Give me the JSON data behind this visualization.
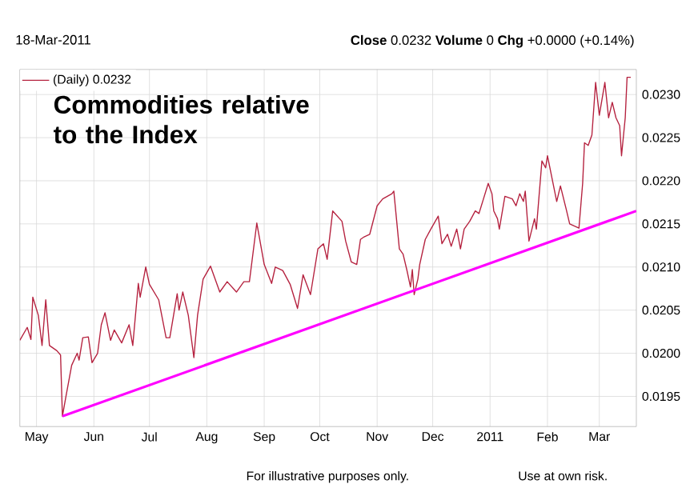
{
  "chart_data": {
    "type": "line",
    "annotations": [
      "18-Mar-2011",
      "**Close** 0.0232  **Volume** 0  **Chg** +0.0000 (+0.14%)",
      "Commodities relative to the Index",
      "For illustrative purposes only.",
      "Use at own risk."
    ],
    "x": [
      "2010-04-22",
      "2010-04-26",
      "2010-04-28",
      "2010-04-29",
      "2010-05-02",
      "2010-05-04",
      "2010-05-06",
      "2010-05-08",
      "2010-05-12",
      "2010-05-14",
      "2010-05-15",
      "2010-05-17",
      "2010-05-20",
      "2010-05-23",
      "2010-05-24",
      "2010-05-26",
      "2010-05-29",
      "2010-05-31",
      "2010-06-03",
      "2010-06-05",
      "2010-06-07",
      "2010-06-10",
      "2010-06-12",
      "2010-06-16",
      "2010-06-20",
      "2010-06-22",
      "2010-06-25",
      "2010-06-26",
      "2010-06-29",
      "2010-07-01",
      "2010-07-06",
      "2010-07-10",
      "2010-07-12",
      "2010-07-16",
      "2010-07-17",
      "2010-07-19",
      "2010-07-22",
      "2010-07-25",
      "2010-07-27",
      "2010-07-30",
      "2010-08-03",
      "2010-08-08",
      "2010-08-12",
      "2010-08-17",
      "2010-08-21",
      "2010-08-24",
      "2010-08-28",
      "2010-09-01",
      "2010-09-05",
      "2010-09-07",
      "2010-09-11",
      "2010-09-15",
      "2010-09-19",
      "2010-09-22",
      "2010-09-26",
      "2010-09-30",
      "2010-10-03",
      "2010-10-05",
      "2010-10-08",
      "2010-10-13",
      "2010-10-15",
      "2010-10-18",
      "2010-10-21",
      "2010-10-23",
      "2010-10-25",
      "2010-10-28",
      "2010-11-01",
      "2010-11-04",
      "2010-11-09",
      "2010-11-10",
      "2010-11-13",
      "2010-11-15",
      "2010-11-17",
      "2010-11-19",
      "2010-11-20",
      "2010-11-21",
      "2010-11-23",
      "2010-11-24",
      "2010-11-27",
      "2010-11-30",
      "2010-12-04",
      "2010-12-06",
      "2010-12-09",
      "2010-12-11",
      "2010-12-14",
      "2010-12-16",
      "2010-12-18",
      "2010-12-21",
      "2010-12-24",
      "2010-12-26",
      "2010-12-28",
      "2010-12-31",
      "2011-01-02",
      "2011-01-03",
      "2011-01-05",
      "2011-01-06",
      "2011-01-09",
      "2011-01-13",
      "2011-01-15",
      "2011-01-17",
      "2011-01-19",
      "2011-01-20",
      "2011-01-22",
      "2011-01-25",
      "2011-01-26",
      "2011-01-29",
      "2011-01-31",
      "2011-02-01",
      "2011-02-04",
      "2011-02-06",
      "2011-02-08",
      "2011-02-11",
      "2011-02-13",
      "2011-02-18",
      "2011-02-20",
      "2011-02-21",
      "2011-02-23",
      "2011-02-25",
      "2011-02-27",
      "2011-03-01",
      "2011-03-04",
      "2011-03-06",
      "2011-03-08",
      "2011-03-10",
      "2011-03-12",
      "2011-03-13",
      "2011-03-15",
      "2011-03-16",
      "2011-03-18"
    ],
    "series": [
      {
        "name": "(Daily) 0.0232",
        "color": "#b5223f",
        "values": [
          0.02015,
          0.0203,
          0.02016,
          0.02065,
          0.02044,
          0.02009,
          0.02062,
          0.02009,
          0.02003,
          0.01998,
          0.01927,
          0.01951,
          0.01986,
          0.02,
          0.01992,
          0.02018,
          0.02019,
          0.01989,
          0.02,
          0.02033,
          0.02047,
          0.02015,
          0.02027,
          0.02012,
          0.02033,
          0.02009,
          0.02081,
          0.02065,
          0.021,
          0.0208,
          0.02062,
          0.02018,
          0.02018,
          0.02069,
          0.0205,
          0.02071,
          0.02044,
          0.01995,
          0.02044,
          0.02086,
          0.02101,
          0.02071,
          0.02083,
          0.02071,
          0.02083,
          0.02083,
          0.02151,
          0.02103,
          0.02081,
          0.021,
          0.02096,
          0.0208,
          0.02052,
          0.02091,
          0.02068,
          0.02121,
          0.02127,
          0.02109,
          0.02165,
          0.02153,
          0.0213,
          0.02106,
          0.02103,
          0.02132,
          0.02135,
          0.02138,
          0.02171,
          0.02179,
          0.02185,
          0.02188,
          0.02121,
          0.02115,
          0.02097,
          0.02077,
          0.02097,
          0.02068,
          0.02086,
          0.02103,
          0.02132,
          0.02144,
          0.02159,
          0.02127,
          0.02138,
          0.02124,
          0.02144,
          0.02121,
          0.02144,
          0.02153,
          0.02165,
          0.02162,
          0.02176,
          0.02197,
          0.02185,
          0.02165,
          0.02156,
          0.02144,
          0.02182,
          0.02179,
          0.02171,
          0.02185,
          0.02176,
          0.02188,
          0.0213,
          0.02156,
          0.02144,
          0.02223,
          0.02215,
          0.02229,
          0.02197,
          0.02176,
          0.02194,
          0.02168,
          0.0215,
          0.02145,
          0.02197,
          0.02244,
          0.02241,
          0.02253,
          0.02314,
          0.02276,
          0.02314,
          0.02273,
          0.02291,
          0.02273,
          0.02264,
          0.02229,
          0.02273,
          0.0232,
          0.0232
        ]
      },
      {
        "type": "line",
        "color": "#ff00ff",
        "x": [
          "2010-05-15",
          "2011-03-21"
        ],
        "values": [
          0.01927,
          0.02165
        ]
      }
    ],
    "xlim": [
      "2010-04-22",
      "2011-03-21"
    ],
    "ylim": [
      0.01915,
      0.02329
    ],
    "xticks": [
      {
        "value": "2010-05-01",
        "label": "May"
      },
      {
        "value": "2010-06-01",
        "label": "Jun"
      },
      {
        "value": "2010-07-01",
        "label": "Jul"
      },
      {
        "value": "2010-08-01",
        "label": "Aug"
      },
      {
        "value": "2010-09-01",
        "label": "Sep"
      },
      {
        "value": "2010-10-01",
        "label": "Oct"
      },
      {
        "value": "2010-11-01",
        "label": "Nov"
      },
      {
        "value": "2010-12-01",
        "label": "Dec"
      },
      {
        "value": "2011-01-01",
        "label": "2011"
      },
      {
        "value": "2011-02-01",
        "label": "Feb"
      },
      {
        "value": "2011-03-01",
        "label": "Mar"
      }
    ],
    "yticks": [
      {
        "value": 0.0195,
        "label": "0.0195"
      },
      {
        "value": 0.02,
        "label": "0.0200"
      },
      {
        "value": 0.0205,
        "label": "0.0205"
      },
      {
        "value": 0.021,
        "label": "0.0210"
      },
      {
        "value": 0.0215,
        "label": "0.0215"
      },
      {
        "value": 0.022,
        "label": "0.0220"
      },
      {
        "value": 0.0225,
        "label": "0.0225"
      },
      {
        "value": 0.023,
        "label": "0.0230"
      }
    ],
    "grid": true,
    "legend": "top left"
  }
}
